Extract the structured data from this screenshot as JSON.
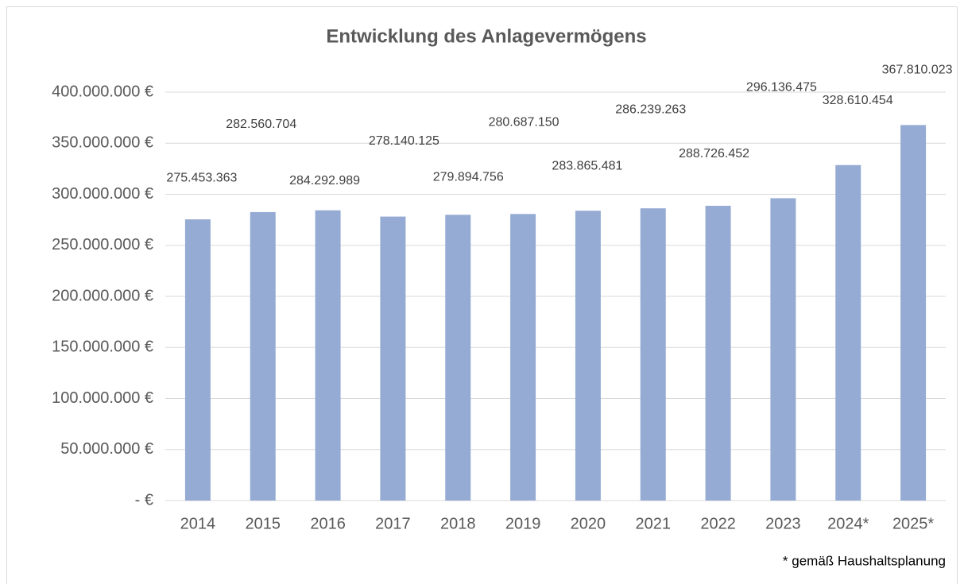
{
  "chart_data": {
    "type": "bar",
    "title": "Entwicklung des Anlagevermögens",
    "categories": [
      "2014",
      "2015",
      "2016",
      "2017",
      "2018",
      "2019",
      "2020",
      "2021",
      "2022",
      "2023",
      "2024*",
      "2025*"
    ],
    "values": [
      275453363,
      282560704,
      284292989,
      278140125,
      279894756,
      280687150,
      283865481,
      286239263,
      288726452,
      296136475,
      328610454,
      367810023
    ],
    "value_labels": [
      "275.453.363",
      "282.560.704",
      "284.292.989",
      "278.140.125",
      "279.894.756",
      "280.687.150",
      "283.865.481",
      "286.239.263",
      "288.726.452",
      "296.136.475",
      "328.610.454",
      "367.810.023"
    ],
    "color": "#95abd3",
    "ylim": [
      0,
      400000000
    ],
    "yticks": [
      {
        "value": 0,
        "label": "-  €"
      },
      {
        "value": 50000000,
        "label": "50.000.000 €"
      },
      {
        "value": 100000000,
        "label": "100.000.000 €"
      },
      {
        "value": 150000000,
        "label": "150.000.000 €"
      },
      {
        "value": 200000000,
        "label": "200.000.000 €"
      },
      {
        "value": 250000000,
        "label": "250.000.000 €"
      },
      {
        "value": 300000000,
        "label": "300.000.000 €"
      },
      {
        "value": 350000000,
        "label": "350.000.000 €"
      },
      {
        "value": 400000000,
        "label": "400.000.000 €"
      }
    ],
    "grid": true,
    "annotation": "* gemäß Haushaltsplanung"
  }
}
